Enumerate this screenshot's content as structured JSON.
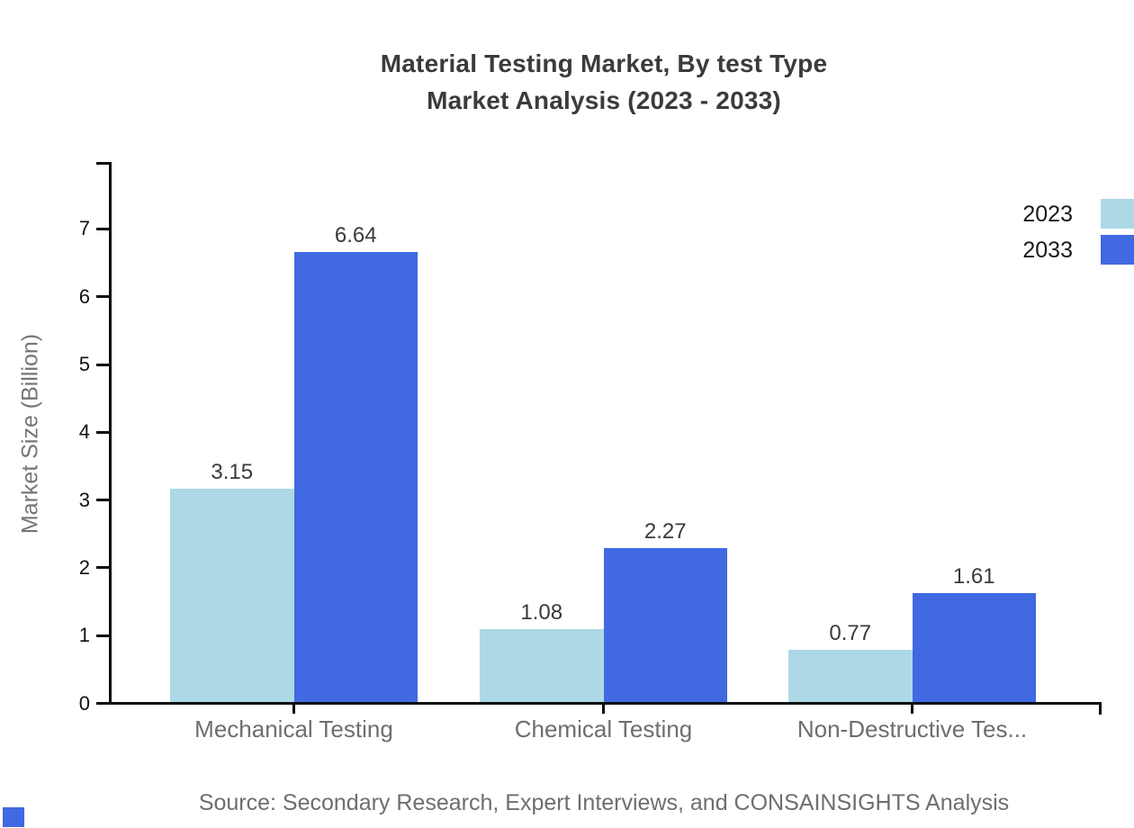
{
  "title": {
    "line1": "Material Testing Market, By test Type",
    "line2": "Market Analysis (2023 - 2033)"
  },
  "y_axis": {
    "label": "Market Size (Billion)"
  },
  "legend": [
    {
      "label": "2023",
      "color": "#add8e6"
    },
    {
      "label": "2033",
      "color": "#4169e1"
    }
  ],
  "source": "Source: Secondary Research, Expert Interviews, and CONSAINSIGHTS Analysis",
  "colors": {
    "axis": "#0d0d0d",
    "bar_2023": "#add8e6",
    "bar_2033": "#4169e1",
    "watermark": "#4169e1"
  },
  "chart_data": {
    "type": "bar",
    "title": "Material Testing Market, By test Type — Market Analysis (2023 - 2033)",
    "categories": [
      "Mechanical Testing",
      "Chemical Testing",
      "Non-Destructive Tes..."
    ],
    "series": [
      {
        "name": "2023",
        "color": "#add8e6",
        "values": [
          3.15,
          1.08,
          0.77
        ]
      },
      {
        "name": "2033",
        "color": "#4169e1",
        "values": [
          6.64,
          2.27,
          1.61
        ]
      }
    ],
    "xlabel": "",
    "ylabel": "Market Size (Billion)",
    "ylim": [
      0,
      8
    ],
    "yticks": [
      0,
      1,
      2,
      3,
      4,
      5,
      6,
      7
    ],
    "grid": false,
    "legend_position": "top-right",
    "value_labels": true
  }
}
